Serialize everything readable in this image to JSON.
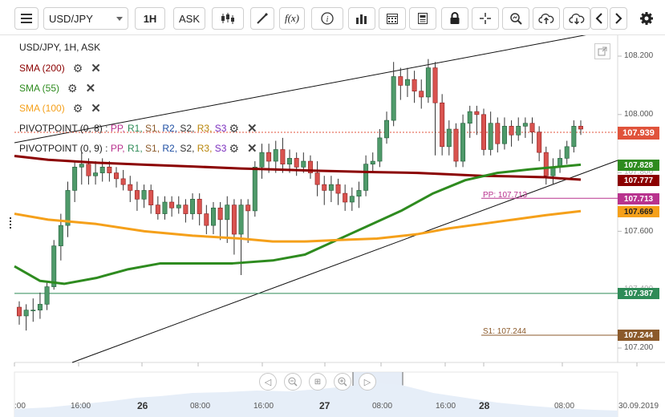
{
  "toolbar": {
    "symbol": "USD/JPY",
    "timeframe": "1H",
    "price_type": "ASK",
    "icons": [
      "menu-icon",
      "candlestick-icon",
      "draw-line-icon",
      "function-icon",
      "info-icon",
      "bar-chart-icon",
      "calendar-icon",
      "report-icon",
      "lock-icon",
      "crosshair-icon",
      "zoom-icon",
      "cloud-upload-icon",
      "cloud-download-icon",
      "chevron-left-icon",
      "chevron-right-icon",
      "gear-icon"
    ]
  },
  "legend": {
    "title": "USD/JPY, 1H, ASK",
    "sma200": "SMA (200)",
    "sma55": "SMA (55)",
    "sma100": "SMA (100)",
    "pivot1_label": "PIVOTPOINT (0, 8)",
    "pivot2_label": "PIVOTPOINT (0, 9)",
    "pivot_items": [
      ":",
      "PP,",
      "R1,",
      "S1,",
      "R2,",
      "S2,",
      "R3,",
      "S3"
    ]
  },
  "colors": {
    "sma200": "#8b0000",
    "sma55": "#2e8b1f",
    "sma100": "#f5a01a",
    "up_candle": "#4f9a6a",
    "down_candle": "#d9534f",
    "pp": "#b8338e",
    "r1": "#2e8b57",
    "s1": "#8b5a2b",
    "r2": "#1f4fa3",
    "s2": "#333333",
    "r3": "#b8860b",
    "s3": "#7b2fbe"
  },
  "chart_data": {
    "type": "candlestick",
    "symbol": "USD/JPY",
    "timeframe": "1H",
    "ylim": [
      107.17,
      108.28
    ],
    "y_ticks": [
      "108.200",
      "108.000",
      "107.800",
      "107.600",
      "107.400",
      "107.200"
    ],
    "x_ticks": [
      ":00",
      "16:00",
      "26",
      "08:00",
      "16:00",
      "27",
      "08:00",
      "16:00",
      "28",
      "08:00",
      "30.09.2019"
    ],
    "current_price": "107.939",
    "price_tags": {
      "sma55": "107.828",
      "sma200": "107.777",
      "pp": "107.713",
      "sma100": "107.669",
      "r_level": "107.387",
      "s1": "107.244"
    },
    "line_labels": {
      "pp": "PP: 107.713",
      "s1": "S1: 107.244"
    },
    "candles": [
      [
        107.34,
        107.31,
        107.36,
        107.28
      ],
      [
        107.31,
        107.33,
        107.35,
        107.26
      ],
      [
        107.33,
        107.33,
        107.37,
        107.29
      ],
      [
        107.33,
        107.35,
        107.39,
        107.3
      ],
      [
        107.35,
        107.41,
        107.43,
        107.33
      ],
      [
        107.41,
        107.55,
        107.57,
        107.4
      ],
      [
        107.55,
        107.62,
        107.66,
        107.5
      ],
      [
        107.62,
        107.74,
        107.77,
        107.58
      ],
      [
        107.74,
        107.82,
        107.84,
        107.7
      ],
      [
        107.82,
        107.83,
        107.87,
        107.76
      ],
      [
        107.83,
        107.79,
        107.85,
        107.76
      ],
      [
        107.79,
        107.8,
        107.84,
        107.76
      ],
      [
        107.8,
        107.82,
        107.85,
        107.77
      ],
      [
        107.82,
        107.8,
        107.84,
        107.77
      ],
      [
        107.8,
        107.78,
        107.82,
        107.75
      ],
      [
        107.78,
        107.76,
        107.81,
        107.74
      ],
      [
        107.76,
        107.74,
        107.79,
        107.7
      ],
      [
        107.74,
        107.71,
        107.77,
        107.67
      ],
      [
        107.71,
        107.74,
        107.76,
        107.68
      ],
      [
        107.74,
        107.69,
        107.76,
        107.66
      ],
      [
        107.69,
        107.66,
        107.72,
        107.64
      ],
      [
        107.66,
        107.7,
        107.72,
        107.64
      ],
      [
        107.7,
        107.68,
        107.72,
        107.65
      ],
      [
        107.68,
        107.69,
        107.72,
        107.66
      ],
      [
        107.69,
        107.66,
        107.71,
        107.63
      ],
      [
        107.66,
        107.71,
        107.73,
        107.64
      ],
      [
        107.71,
        107.66,
        107.73,
        107.62
      ],
      [
        107.66,
        107.62,
        107.69,
        107.59
      ],
      [
        107.62,
        107.68,
        107.7,
        107.59
      ],
      [
        107.68,
        107.64,
        107.7,
        107.57
      ],
      [
        107.64,
        107.69,
        107.72,
        107.56
      ],
      [
        107.69,
        107.59,
        107.71,
        107.52
      ],
      [
        107.59,
        107.69,
        107.71,
        107.45
      ],
      [
        107.69,
        107.67,
        107.71,
        107.56
      ],
      [
        107.67,
        107.82,
        107.84,
        107.65
      ],
      [
        107.82,
        107.87,
        107.9,
        107.78
      ],
      [
        107.87,
        107.84,
        107.9,
        107.8
      ],
      [
        107.84,
        107.88,
        107.91,
        107.8
      ],
      [
        107.88,
        107.83,
        107.92,
        107.8
      ],
      [
        107.83,
        107.85,
        107.88,
        107.8
      ],
      [
        107.85,
        107.82,
        107.87,
        107.79
      ],
      [
        107.82,
        107.84,
        107.87,
        107.8
      ],
      [
        107.84,
        107.8,
        107.86,
        107.78
      ],
      [
        107.8,
        107.76,
        107.84,
        107.72
      ],
      [
        107.76,
        107.74,
        107.79,
        107.69
      ],
      [
        107.74,
        107.76,
        107.79,
        107.7
      ],
      [
        107.76,
        107.73,
        107.78,
        107.69
      ],
      [
        107.73,
        107.7,
        107.76,
        107.67
      ],
      [
        107.7,
        107.72,
        107.75,
        107.67
      ],
      [
        107.72,
        107.74,
        107.77,
        107.68
      ],
      [
        107.74,
        107.83,
        107.86,
        107.72
      ],
      [
        107.83,
        107.84,
        107.87,
        107.8
      ],
      [
        107.84,
        107.92,
        107.95,
        107.82
      ],
      [
        107.92,
        107.98,
        108.01,
        107.9
      ],
      [
        107.98,
        108.13,
        108.18,
        107.96
      ],
      [
        108.13,
        108.1,
        108.16,
        108.05
      ],
      [
        108.1,
        108.12,
        108.16,
        108.06
      ],
      [
        108.12,
        108.08,
        108.15,
        108.04
      ],
      [
        108.08,
        108.06,
        108.12,
        108.02
      ],
      [
        108.06,
        108.16,
        108.19,
        108.04
      ],
      [
        108.16,
        108.04,
        108.18,
        107.86
      ],
      [
        108.04,
        107.89,
        108.07,
        107.86
      ],
      [
        107.89,
        107.95,
        107.98,
        107.86
      ],
      [
        107.95,
        107.84,
        107.97,
        107.82
      ],
      [
        107.84,
        107.97,
        108.0,
        107.82
      ],
      [
        107.97,
        108.01,
        108.03,
        107.92
      ],
      [
        108.01,
        108.0,
        108.03,
        107.93
      ],
      [
        108.0,
        107.88,
        108.02,
        107.86
      ],
      [
        107.88,
        107.97,
        108.01,
        107.86
      ],
      [
        107.97,
        107.9,
        107.99,
        107.87
      ],
      [
        107.9,
        107.96,
        107.99,
        107.88
      ],
      [
        107.96,
        107.93,
        107.98,
        107.89
      ],
      [
        107.93,
        107.96,
        107.99,
        107.91
      ],
      [
        107.96,
        107.97,
        107.99,
        107.92
      ],
      [
        107.97,
        107.94,
        107.99,
        107.9
      ],
      [
        107.94,
        107.87,
        107.96,
        107.84
      ],
      [
        107.87,
        107.79,
        107.89,
        107.76
      ],
      [
        107.79,
        107.82,
        107.85,
        107.76
      ],
      [
        107.82,
        107.85,
        107.88,
        107.8
      ],
      [
        107.85,
        107.89,
        107.91,
        107.83
      ],
      [
        107.89,
        107.96,
        107.98,
        107.87
      ],
      [
        107.96,
        107.95,
        107.98,
        107.93
      ]
    ]
  }
}
